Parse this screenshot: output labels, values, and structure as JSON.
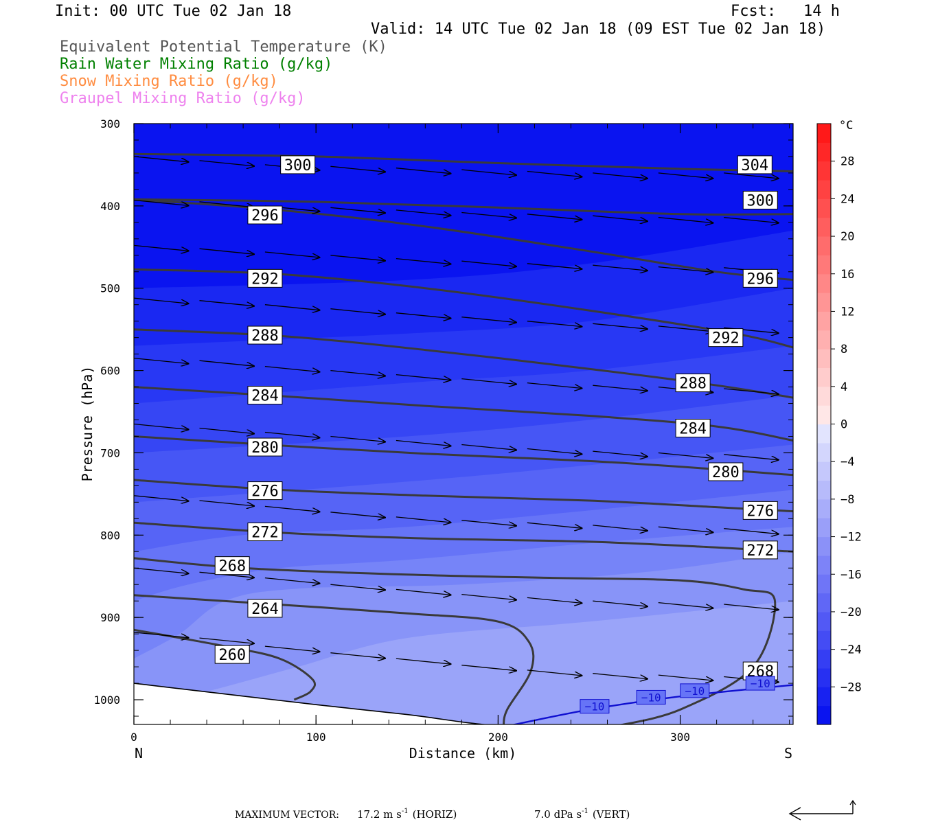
{
  "header": {
    "init": "Init: 00 UTC Tue 02 Jan 18",
    "fcst": "Fcst:   14 h",
    "valid": "Valid: 14 UTC Tue 02 Jan 18 (09 EST Tue 02 Jan 18)"
  },
  "legend": [
    {
      "text": "Equivalent Potential Temperature (K)",
      "color": "#555555"
    },
    {
      "text": "Rain Water Mixing Ratio (g/kg)",
      "color": "#008000"
    },
    {
      "text": "Snow Mixing Ratio (g/kg)",
      "color": "#ff8c40"
    },
    {
      "text": "Graupel Mixing Ratio (g/kg)",
      "color": "#ee82ee"
    }
  ],
  "footer": {
    "max_vector_label": "MAXIMUM VECTOR:",
    "horiz_value": "17.2 m s",
    "horiz_exp": "-1",
    "horiz_tag": "(HORIZ)",
    "vert_value": "7.0 dPa s",
    "vert_exp": "-1",
    "vert_tag": "(VERT)"
  },
  "chart_data": {
    "type": "cross-section",
    "xlabel": "Distance (km)",
    "ylabel": "Pressure (hPa)",
    "xlim": [
      0,
      362
    ],
    "ylim": [
      300,
      1030
    ],
    "y_scale": "linear, inverted",
    "x_ticks": [
      0,
      100,
      200,
      300
    ],
    "y_ticks": [
      300,
      400,
      500,
      600,
      700,
      800,
      900,
      1000
    ],
    "left_end_label": "N",
    "right_end_label": "S",
    "colorbar": {
      "unit": "°C",
      "tick_labels": [
        "28",
        "24",
        "20",
        "16",
        "12",
        "8",
        "4",
        "0",
        "-4",
        "-8",
        "-12",
        "-16",
        "-20",
        "-24",
        "-28"
      ],
      "tick_values": [
        28,
        24,
        20,
        16,
        12,
        8,
        4,
        0,
        -4,
        -8,
        -12,
        -16,
        -20,
        -24,
        -28
      ],
      "range": [
        -32,
        32
      ],
      "step": 2
    },
    "temperature_fill": [
      {
        "levels": "below -28",
        "color": "#0a14f0"
      },
      {
        "levels": "-28 to -26",
        "color": "#1a28f2"
      },
      {
        "levels": "-26 to -24",
        "color": "#2838f4"
      },
      {
        "levels": "-24 to -22",
        "color": "#3646f4"
      },
      {
        "levels": "-22 to -20",
        "color": "#4656f5"
      },
      {
        "levels": "-20 to -18",
        "color": "#5664f6"
      },
      {
        "levels": "-18 to -16",
        "color": "#6674f7"
      },
      {
        "levels": "-16 to -14",
        "color": "#7684f8"
      },
      {
        "levels": "-14 to -12",
        "color": "#8894f8"
      },
      {
        "levels": "-12 to -10",
        "color": "#9aa4f9"
      }
    ],
    "theta_e_contours": [
      {
        "label": "304",
        "points": [
          [
            0,
            337
          ],
          [
            100,
            340
          ],
          [
            200,
            348
          ],
          [
            300,
            355
          ],
          [
            362,
            358
          ]
        ],
        "label_x": [
          341
        ],
        "label_p": [
          350
        ]
      },
      {
        "label": "300",
        "points": [
          [
            0,
            392
          ],
          [
            100,
            395
          ],
          [
            200,
            402
          ],
          [
            300,
            410
          ],
          [
            362,
            410
          ]
        ],
        "label_x": [
          90,
          344
        ],
        "label_p": [
          350,
          393
        ]
      },
      {
        "label": "296",
        "points": [
          [
            0,
            392
          ],
          [
            80,
            405
          ],
          [
            160,
            425
          ],
          [
            250,
            455
          ],
          [
            320,
            480
          ],
          [
            362,
            490
          ]
        ],
        "label_x": [
          72,
          344
        ],
        "label_p": [
          411,
          488
        ]
      },
      {
        "label": "292",
        "points": [
          [
            0,
            477
          ],
          [
            80,
            483
          ],
          [
            160,
            500
          ],
          [
            250,
            527
          ],
          [
            330,
            555
          ],
          [
            362,
            572
          ]
        ],
        "label_x": [
          72,
          325
        ],
        "label_p": [
          488,
          560
        ]
      },
      {
        "label": "288",
        "points": [
          [
            0,
            550
          ],
          [
            80,
            558
          ],
          [
            160,
            575
          ],
          [
            250,
            598
          ],
          [
            320,
            618
          ],
          [
            362,
            633
          ]
        ],
        "label_x": [
          72,
          307
        ],
        "label_p": [
          557,
          615
        ]
      },
      {
        "label": "284",
        "points": [
          [
            0,
            620
          ],
          [
            80,
            631
          ],
          [
            160,
            643
          ],
          [
            250,
            655
          ],
          [
            320,
            668
          ],
          [
            362,
            685
          ]
        ],
        "label_x": [
          72,
          307
        ],
        "label_p": [
          630,
          670
        ]
      },
      {
        "label": "280",
        "points": [
          [
            0,
            680
          ],
          [
            80,
            691
          ],
          [
            160,
            701
          ],
          [
            250,
            710
          ],
          [
            320,
            720
          ],
          [
            362,
            727
          ]
        ],
        "label_x": [
          72,
          325
        ],
        "label_p": [
          693,
          723
        ]
      },
      {
        "label": "276",
        "points": [
          [
            0,
            733
          ],
          [
            80,
            745
          ],
          [
            160,
            752
          ],
          [
            250,
            758
          ],
          [
            320,
            766
          ],
          [
            362,
            771
          ]
        ],
        "label_x": [
          72,
          344
        ],
        "label_p": [
          746,
          770
        ]
      },
      {
        "label": "272",
        "points": [
          [
            0,
            785
          ],
          [
            80,
            797
          ],
          [
            160,
            804
          ],
          [
            250,
            808
          ],
          [
            320,
            815
          ],
          [
            362,
            820
          ]
        ],
        "label_x": [
          72,
          344
        ],
        "label_p": [
          796,
          818
        ]
      },
      {
        "label": "268",
        "points": [
          [
            0,
            828
          ],
          [
            60,
            840
          ],
          [
            150,
            848
          ],
          [
            230,
            852
          ],
          [
            300,
            855
          ],
          [
            335,
            866
          ],
          [
            352,
            880
          ],
          [
            340,
            960
          ],
          [
            300,
            1012
          ],
          [
            265,
            1032
          ]
        ],
        "label_x": [
          54,
          344
        ],
        "label_p": [
          837,
          965
        ]
      },
      {
        "label": "264",
        "points": [
          [
            0,
            873
          ],
          [
            70,
            883
          ],
          [
            150,
            895
          ],
          [
            200,
            905
          ],
          [
            217,
            930
          ],
          [
            218,
            965
          ],
          [
            205,
            1012
          ],
          [
            203,
            1032
          ]
        ],
        "label_x": [
          72
        ],
        "label_p": [
          889
        ]
      },
      {
        "label": "260",
        "points": [
          [
            0,
            915
          ],
          [
            50,
            935
          ],
          [
            80,
            950
          ],
          [
            98,
            975
          ],
          [
            97,
            990
          ],
          [
            88,
            1000
          ]
        ],
        "label_x": [
          54
        ],
        "label_p": [
          945
        ]
      }
    ],
    "temperature_contours": [
      {
        "label": "-10",
        "label_text": "−10",
        "points": [
          [
            205,
            1032
          ],
          [
            250,
            1012
          ],
          [
            300,
            996
          ],
          [
            362,
            982
          ]
        ],
        "label_x": [
          253,
          284,
          308,
          344
        ],
        "label_p": [
          1008,
          997,
          989,
          980
        ]
      }
    ],
    "terrain_pressure": [
      [
        0,
        980
      ],
      [
        50,
        993
      ],
      [
        100,
        1006
      ],
      [
        150,
        1018
      ],
      [
        180,
        1027
      ],
      [
        200,
        1032
      ]
    ],
    "wind_vectors_note": "horizontal wind arrows, mostly west-to-east (left-to-right), plotted on a regular grid",
    "wind_vectors": [
      {
        "x": 0,
        "p": 340,
        "u": 1.0,
        "v": 0.1
      },
      {
        "x": 36,
        "p": 345,
        "u": 1.0,
        "v": 0.1
      },
      {
        "x": 72,
        "p": 350,
        "u": 1.0,
        "v": 0.1
      },
      {
        "x": 108,
        "p": 352,
        "u": 1.0,
        "v": 0.1
      },
      {
        "x": 144,
        "p": 354,
        "u": 1.0,
        "v": 0.1
      },
      {
        "x": 180,
        "p": 356,
        "u": 1.0,
        "v": 0.1
      },
      {
        "x": 216,
        "p": 358,
        "u": 1.0,
        "v": 0.1
      },
      {
        "x": 252,
        "p": 360,
        "u": 1.0,
        "v": 0.1
      },
      {
        "x": 288,
        "p": 360,
        "u": 1.0,
        "v": 0.1
      },
      {
        "x": 324,
        "p": 360,
        "u": 1.0,
        "v": 0.1
      },
      {
        "x": 0,
        "p": 393,
        "u": 1.0,
        "v": 0.1
      },
      {
        "x": 36,
        "p": 395,
        "u": 1.0,
        "v": 0.1
      },
      {
        "x": 72,
        "p": 400,
        "u": 1.0,
        "v": 0.1
      },
      {
        "x": 108,
        "p": 402,
        "u": 1.0,
        "v": 0.1
      },
      {
        "x": 144,
        "p": 405,
        "u": 1.0,
        "v": 0.1
      },
      {
        "x": 180,
        "p": 408,
        "u": 1.0,
        "v": 0.1
      },
      {
        "x": 216,
        "p": 410,
        "u": 1.0,
        "v": 0.1
      },
      {
        "x": 252,
        "p": 412,
        "u": 1.0,
        "v": 0.1
      },
      {
        "x": 288,
        "p": 414,
        "u": 1.0,
        "v": 0.1
      },
      {
        "x": 324,
        "p": 414,
        "u": 1.0,
        "v": 0.1
      },
      {
        "x": 0,
        "p": 448,
        "u": 1.0,
        "v": 0.1
      },
      {
        "x": 36,
        "p": 452,
        "u": 1.0,
        "v": 0.1
      },
      {
        "x": 72,
        "p": 456,
        "u": 1.0,
        "v": 0.1
      },
      {
        "x": 108,
        "p": 460,
        "u": 1.0,
        "v": 0.1
      },
      {
        "x": 144,
        "p": 464,
        "u": 1.0,
        "v": 0.1
      },
      {
        "x": 180,
        "p": 467,
        "u": 1.0,
        "v": 0.1
      },
      {
        "x": 216,
        "p": 470,
        "u": 1.0,
        "v": 0.1
      },
      {
        "x": 252,
        "p": 472,
        "u": 1.0,
        "v": 0.1
      },
      {
        "x": 288,
        "p": 474,
        "u": 1.0,
        "v": 0.1
      },
      {
        "x": 324,
        "p": 475,
        "u": 1.0,
        "v": 0.1
      },
      {
        "x": 0,
        "p": 512,
        "u": 1.0,
        "v": 0.1
      },
      {
        "x": 36,
        "p": 515,
        "u": 1.0,
        "v": 0.1
      },
      {
        "x": 72,
        "p": 520,
        "u": 1.0,
        "v": 0.1
      },
      {
        "x": 108,
        "p": 525,
        "u": 1.0,
        "v": 0.1
      },
      {
        "x": 144,
        "p": 530,
        "u": 1.0,
        "v": 0.1
      },
      {
        "x": 180,
        "p": 535,
        "u": 1.0,
        "v": 0.1
      },
      {
        "x": 216,
        "p": 540,
        "u": 1.0,
        "v": 0.1
      },
      {
        "x": 252,
        "p": 543,
        "u": 1.0,
        "v": 0.1
      },
      {
        "x": 288,
        "p": 546,
        "u": 1.0,
        "v": 0.1
      },
      {
        "x": 324,
        "p": 548,
        "u": 1.0,
        "v": 0.1
      },
      {
        "x": 0,
        "p": 585,
        "u": 1.0,
        "v": 0.1
      },
      {
        "x": 36,
        "p": 588,
        "u": 1.0,
        "v": 0.1
      },
      {
        "x": 72,
        "p": 595,
        "u": 1.0,
        "v": 0.1
      },
      {
        "x": 108,
        "p": 600,
        "u": 1.0,
        "v": 0.1
      },
      {
        "x": 144,
        "p": 605,
        "u": 1.0,
        "v": 0.1
      },
      {
        "x": 180,
        "p": 610,
        "u": 1.0,
        "v": 0.1
      },
      {
        "x": 216,
        "p": 615,
        "u": 1.0,
        "v": 0.1
      },
      {
        "x": 252,
        "p": 618,
        "u": 1.0,
        "v": 0.1
      },
      {
        "x": 288,
        "p": 620,
        "u": 1.0,
        "v": 0.1
      },
      {
        "x": 324,
        "p": 622,
        "u": 1.0,
        "v": 0.1
      },
      {
        "x": 0,
        "p": 665,
        "u": 1.0,
        "v": 0.1
      },
      {
        "x": 36,
        "p": 670,
        "u": 1.0,
        "v": 0.1
      },
      {
        "x": 72,
        "p": 675,
        "u": 1.0,
        "v": 0.1
      },
      {
        "x": 108,
        "p": 680,
        "u": 1.0,
        "v": 0.1
      },
      {
        "x": 144,
        "p": 685,
        "u": 1.0,
        "v": 0.1
      },
      {
        "x": 180,
        "p": 690,
        "u": 1.0,
        "v": 0.1
      },
      {
        "x": 216,
        "p": 695,
        "u": 1.0,
        "v": 0.1
      },
      {
        "x": 252,
        "p": 698,
        "u": 1.0,
        "v": 0.1
      },
      {
        "x": 288,
        "p": 700,
        "u": 1.0,
        "v": 0.1
      },
      {
        "x": 324,
        "p": 702,
        "u": 1.0,
        "v": 0.1
      },
      {
        "x": 0,
        "p": 752,
        "u": 1.0,
        "v": 0.1
      },
      {
        "x": 36,
        "p": 758,
        "u": 1.0,
        "v": 0.1
      },
      {
        "x": 72,
        "p": 765,
        "u": 1.0,
        "v": 0.1
      },
      {
        "x": 108,
        "p": 772,
        "u": 1.0,
        "v": 0.1
      },
      {
        "x": 144,
        "p": 778,
        "u": 1.0,
        "v": 0.1
      },
      {
        "x": 180,
        "p": 782,
        "u": 1.0,
        "v": 0.1
      },
      {
        "x": 216,
        "p": 785,
        "u": 1.0,
        "v": 0.1
      },
      {
        "x": 252,
        "p": 788,
        "u": 1.0,
        "v": 0.1
      },
      {
        "x": 288,
        "p": 790,
        "u": 1.0,
        "v": 0.1
      },
      {
        "x": 324,
        "p": 792,
        "u": 1.0,
        "v": 0.1
      },
      {
        "x": 0,
        "p": 840,
        "u": 1.0,
        "v": 0.1
      },
      {
        "x": 36,
        "p": 845,
        "u": 1.0,
        "v": 0.1
      },
      {
        "x": 72,
        "p": 852,
        "u": 1.0,
        "v": 0.1
      },
      {
        "x": 108,
        "p": 860,
        "u": 1.0,
        "v": 0.1
      },
      {
        "x": 144,
        "p": 866,
        "u": 1.0,
        "v": 0.1
      },
      {
        "x": 180,
        "p": 872,
        "u": 1.0,
        "v": 0.1
      },
      {
        "x": 216,
        "p": 876,
        "u": 1.0,
        "v": 0.1
      },
      {
        "x": 252,
        "p": 880,
        "u": 1.0,
        "v": 0.1
      },
      {
        "x": 288,
        "p": 882,
        "u": 1.0,
        "v": 0.1
      },
      {
        "x": 324,
        "p": 884,
        "u": 1.0,
        "v": 0.1
      },
      {
        "x": 0,
        "p": 918,
        "u": 1.0,
        "v": 0.1
      },
      {
        "x": 36,
        "p": 925,
        "u": 1.0,
        "v": 0.1
      },
      {
        "x": 72,
        "p": 935,
        "u": 1.0,
        "v": 0.1
      },
      {
        "x": 108,
        "p": 943,
        "u": 1.0,
        "v": 0.1
      },
      {
        "x": 144,
        "p": 950,
        "u": 1.0,
        "v": 0.1
      },
      {
        "x": 180,
        "p": 958,
        "u": 1.0,
        "v": 0.1
      },
      {
        "x": 216,
        "p": 964,
        "u": 1.0,
        "v": 0.1
      },
      {
        "x": 252,
        "p": 968,
        "u": 1.0,
        "v": 0.1
      },
      {
        "x": 288,
        "p": 970,
        "u": 1.0,
        "v": 0.1
      },
      {
        "x": 324,
        "p": 972,
        "u": 1.0,
        "v": 0.1
      }
    ]
  }
}
